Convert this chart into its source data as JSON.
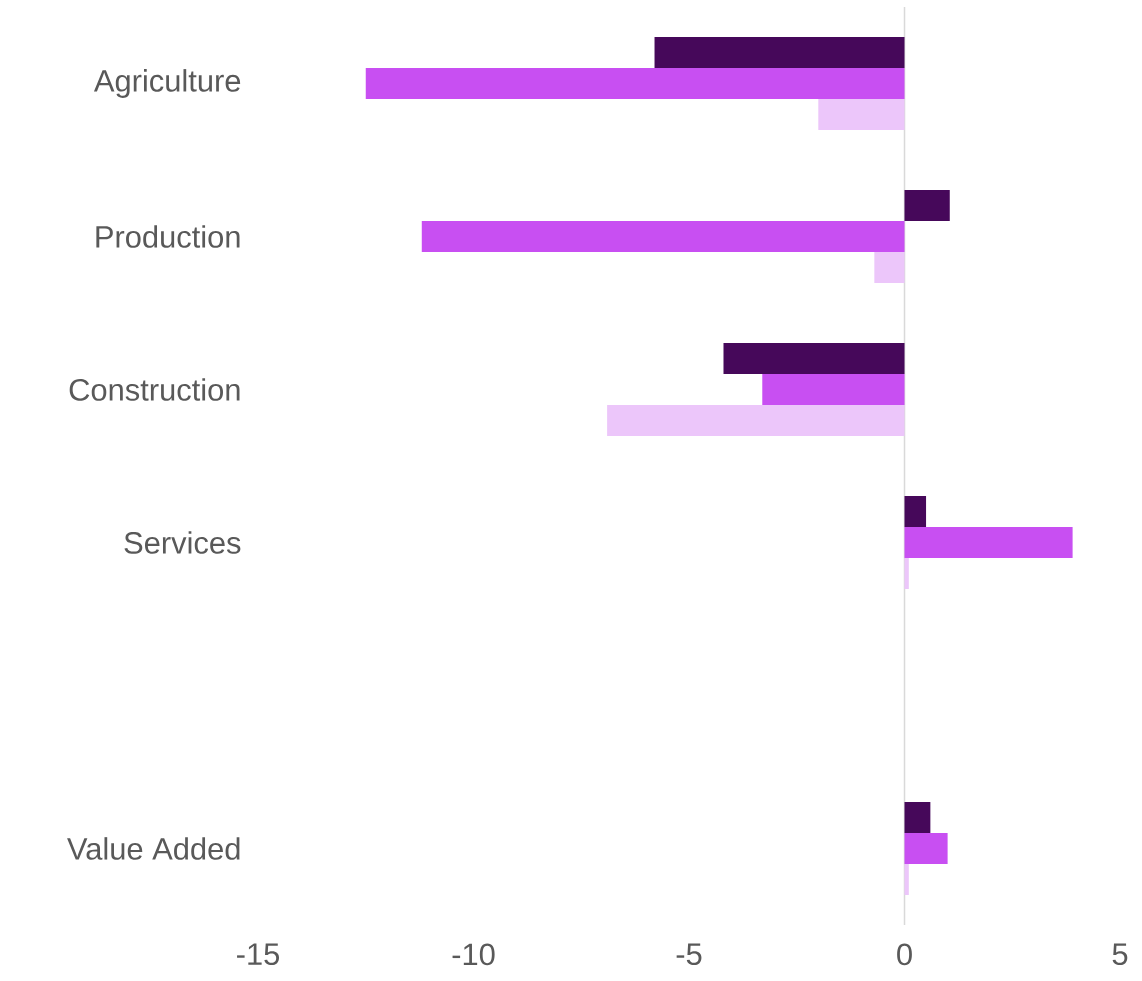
{
  "chart_data": {
    "type": "bar",
    "orientation": "horizontal",
    "categories": [
      "Agriculture",
      "Production",
      "Construction",
      "Services",
      null,
      "Value Added"
    ],
    "series": [
      {
        "color": "#46085a",
        "values": [
          -5.8,
          1.05,
          -4.2,
          0.5,
          null,
          0.6
        ]
      },
      {
        "color": "#c84ff2",
        "values": [
          -12.5,
          -11.2,
          -3.3,
          3.9,
          null,
          1.0
        ]
      },
      {
        "color": "#ecc6fa",
        "values": [
          -2.0,
          -0.7,
          -6.9,
          0.1,
          null,
          0.1
        ]
      }
    ],
    "xlim": [
      -15,
      5
    ],
    "xticks": [
      -15,
      -10,
      -5,
      0,
      5
    ]
  }
}
